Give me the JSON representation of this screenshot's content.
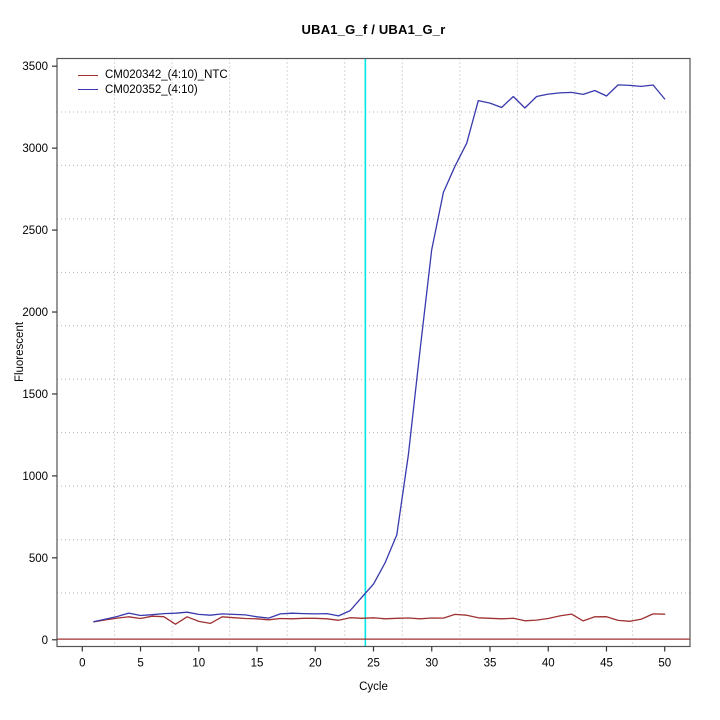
{
  "title": "UBA1_G_f / UBA1_G_r",
  "chart_data": {
    "type": "line",
    "title": "UBA1_G_f / UBA1_G_r",
    "xlabel": "Cycle",
    "ylabel": "Fluorescent",
    "xticks": [
      0,
      5,
      10,
      15,
      20,
      25,
      30,
      35,
      40,
      45,
      50
    ],
    "yticks": [
      0,
      500,
      1000,
      1500,
      2000,
      2500,
      3000,
      3500
    ],
    "xlim": [
      -2.17,
      52.17
    ],
    "ylim": [
      -41,
      3547
    ],
    "grid": {
      "style": "dotted",
      "interior_lines_per_axis": 10,
      "color": "#b0b0b0",
      "aligned_to_ticks": false
    },
    "legend_position": "top-left",
    "ct_marker_line": {
      "cycle": 24.3,
      "color": "#00E5E5"
    },
    "threshold_line": {
      "value": 4,
      "color": "#A03232"
    },
    "cycles": [
      1,
      2,
      3,
      4,
      5,
      6,
      7,
      8,
      9,
      10,
      11,
      12,
      13,
      14,
      15,
      16,
      17,
      18,
      19,
      20,
      21,
      22,
      23,
      24,
      25,
      26,
      27,
      28,
      29,
      30,
      31,
      32,
      33,
      34,
      35,
      36,
      37,
      38,
      39,
      40,
      41,
      42,
      43,
      44,
      45,
      46,
      47,
      48,
      49,
      50
    ],
    "series": [
      {
        "name": "CM020342_(4:10)_NTC",
        "color": "#A03232",
        "values": [
          110,
          122,
          132,
          140,
          130,
          144,
          141,
          95,
          140,
          112,
          100,
          140,
          135,
          130,
          128,
          122,
          130,
          128,
          131,
          131,
          128,
          119,
          135,
          131,
          134,
          128,
          131,
          133,
          128,
          133,
          132,
          155,
          150,
          134,
          131,
          128,
          131,
          116,
          120,
          130,
          146,
          157,
          115,
          140,
          141,
          118,
          113,
          126,
          158,
          156
        ]
      },
      {
        "name": "CM020352_(4:10)",
        "color": "#3939AE",
        "values": [
          111,
          126,
          142,
          163,
          148,
          153,
          160,
          162,
          168,
          155,
          150,
          158,
          155,
          152,
          140,
          132,
          158,
          162,
          160,
          158,
          160,
          146,
          178,
          260,
          340,
          470,
          640,
          1130,
          1770,
          2380,
          2730,
          2890,
          3030,
          3290,
          3275,
          3248,
          3315,
          3245,
          3315,
          3330,
          3337,
          3340,
          3328,
          3352,
          3318,
          3386,
          3383,
          3377,
          3385,
          3300
        ]
      }
    ],
    "axis_color": "#555555",
    "tick_color": "#333333"
  }
}
